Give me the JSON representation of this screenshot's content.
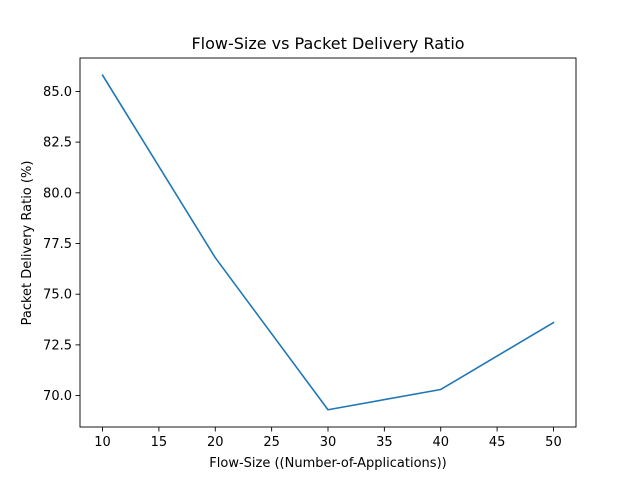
{
  "chart_data": {
    "type": "line",
    "title": "Flow-Size vs Packet Delivery Ratio",
    "xlabel": "Flow-Size ((Number-of-Applications))",
    "ylabel": "Packet Delivery Ratio (%)",
    "xlim": [
      8,
      52
    ],
    "ylim": [
      68.45,
      86.65
    ],
    "xticks": [
      10,
      15,
      20,
      25,
      30,
      35,
      40,
      45,
      50
    ],
    "yticks": [
      70.0,
      72.5,
      75.0,
      77.5,
      80.0,
      82.5,
      85.0
    ],
    "xtick_labels": [
      "10",
      "15",
      "20",
      "25",
      "30",
      "35",
      "40",
      "45",
      "50"
    ],
    "ytick_labels": [
      "70.0",
      "72.5",
      "75.0",
      "77.5",
      "80.0",
      "82.5",
      "85.0"
    ],
    "grid": false,
    "line_color": "#1f77b4",
    "series": [
      {
        "x": [
          10,
          20,
          30,
          40,
          50
        ],
        "y": [
          85.8,
          76.8,
          69.3,
          70.3,
          73.6
        ]
      }
    ]
  }
}
